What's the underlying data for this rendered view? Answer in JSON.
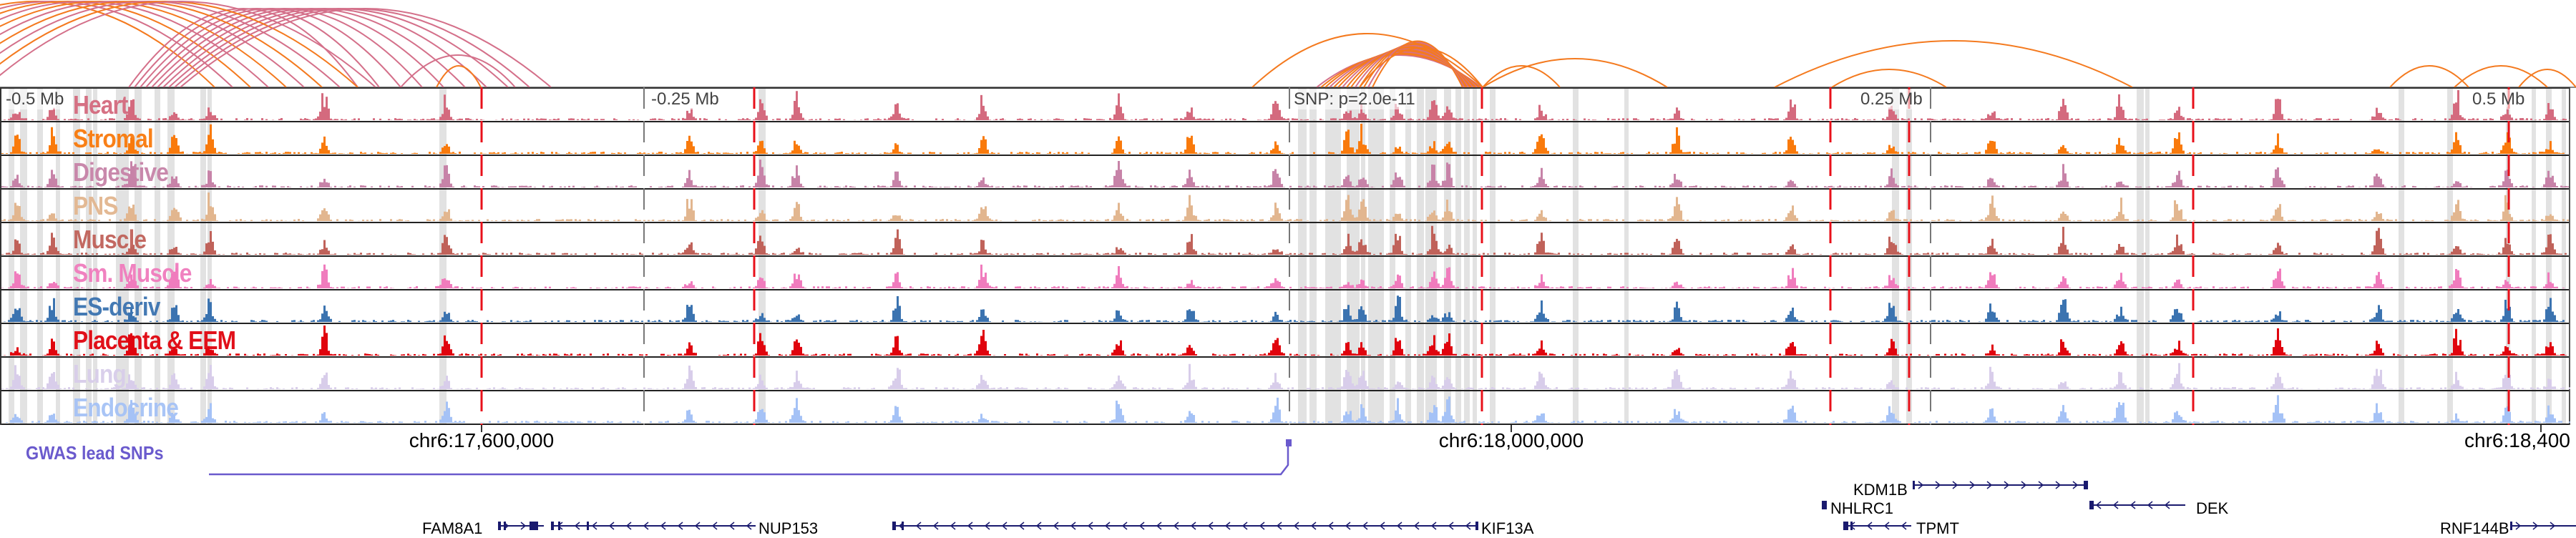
{
  "tracks": [
    {
      "label": "Heart",
      "color": "#d46a7e"
    },
    {
      "label": "Stromal",
      "color": "#f97a0c"
    },
    {
      "label": "Digestive",
      "color": "#c783a8"
    },
    {
      "label": "PNS",
      "color": "#e2b68f"
    },
    {
      "label": "Muscle",
      "color": "#c0625a"
    },
    {
      "label": "Sm. Muscle",
      "color": "#f07cbd"
    },
    {
      "label": "ES-deriv",
      "color": "#3b73b0"
    },
    {
      "label": "Placenta & EEM",
      "color": "#e0040e"
    },
    {
      "label": "Lung",
      "color": "#d8cdea"
    },
    {
      "label": "Endocrine",
      "color": "#a5c2f6"
    }
  ],
  "distance_labels": [
    "-0.5 Mb",
    "-0.25 Mb",
    "SNP: p=2.0e-11",
    "0.25 Mb",
    "0.5 Mb"
  ],
  "axis_labels": [
    "chr6:17,600,000",
    "chr6:18,000,000",
    "chr6:18,400"
  ],
  "gwas": {
    "label": "GWAS lead SNPs",
    "color": "#6a5acd"
  },
  "genes": [
    {
      "name": "FAM8A1",
      "strand": "+"
    },
    {
      "name": "NUP153",
      "strand": "-"
    },
    {
      "name": "KIF13A",
      "strand": "-"
    },
    {
      "name": "KDM1B",
      "strand": "+"
    },
    {
      "name": "NHLRC1",
      "strand": "-"
    },
    {
      "name": "TPMT",
      "strand": "-"
    },
    {
      "name": "DEK",
      "strand": "-"
    },
    {
      "name": "RNF144B",
      "strand": "+"
    }
  ],
  "colors": {
    "arc_orange": "#f47a1f",
    "arc_pink": "#d4708a",
    "marker_red": "#e8101a",
    "gene": "#1a1a6e",
    "shade": "#e2e2e2"
  }
}
